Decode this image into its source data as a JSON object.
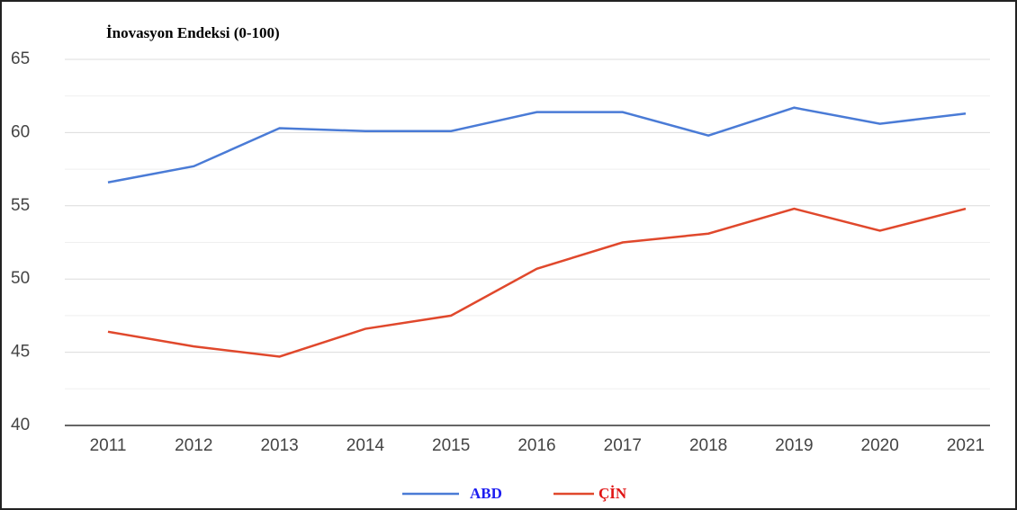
{
  "chart_data": {
    "type": "line",
    "title": "İnovasyon Endeksi (0-100)",
    "categories": [
      "2011",
      "2012",
      "2013",
      "2014",
      "2015",
      "2016",
      "2017",
      "2018",
      "2019",
      "2020",
      "2021"
    ],
    "series": [
      {
        "name": "ABD",
        "color": "#4a7bd6",
        "label_color": "#1c1cf0",
        "values": [
          56.6,
          57.7,
          60.3,
          60.1,
          60.1,
          61.4,
          61.4,
          59.8,
          61.7,
          60.6,
          61.3
        ]
      },
      {
        "name": "ÇİN",
        "color": "#e0482c",
        "label_color": "#e01414",
        "values": [
          46.4,
          45.4,
          44.7,
          46.6,
          47.5,
          50.7,
          52.5,
          53.1,
          54.8,
          53.3,
          54.8
        ]
      }
    ],
    "ylim": [
      40,
      65
    ],
    "yticks": [
      40,
      45,
      50,
      55,
      60,
      65
    ],
    "yminor": [
      42.5,
      47.5,
      52.5,
      57.5,
      62.5
    ],
    "grid": true,
    "legend": "bottom"
  }
}
